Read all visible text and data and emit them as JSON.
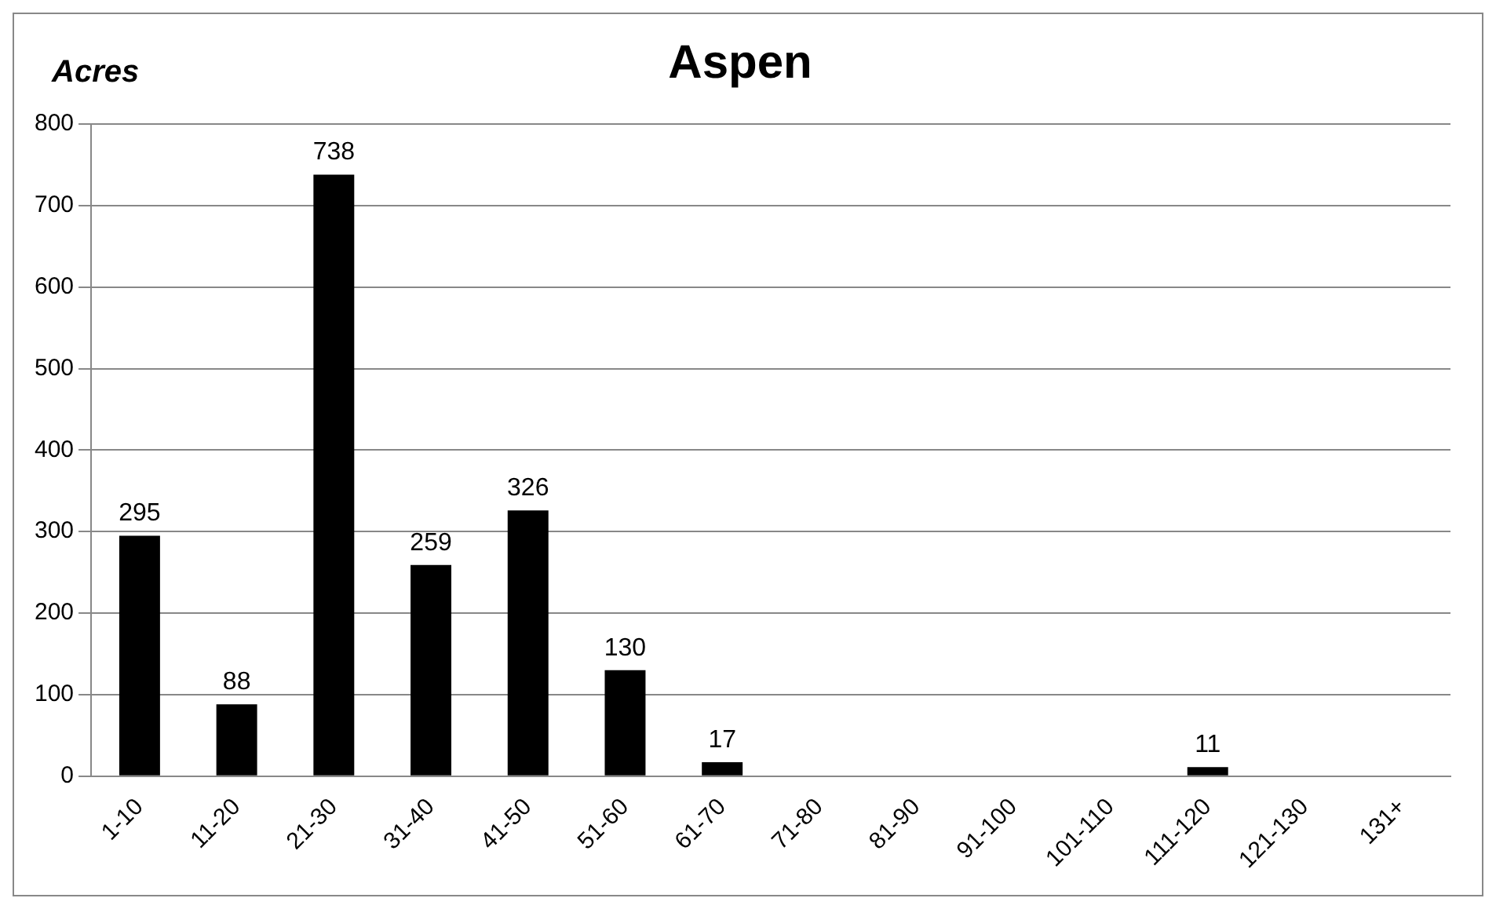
{
  "chart_data": {
    "type": "bar",
    "title": "Aspen",
    "ylabel": "Acres",
    "categories": [
      "1-10",
      "11-20",
      "21-30",
      "31-40",
      "41-50",
      "51-60",
      "61-70",
      "71-80",
      "81-90",
      "91-100",
      "101-110",
      "111-120",
      "121-130",
      "131+"
    ],
    "values": [
      295,
      88,
      738,
      259,
      326,
      130,
      17,
      0,
      0,
      0,
      0,
      11,
      0,
      0
    ],
    "value_labels": [
      "295",
      "88",
      "738",
      "259",
      "326",
      "130",
      "17",
      null,
      null,
      null,
      null,
      "11",
      null,
      null
    ],
    "color": "#000000",
    "ylim": [
      0,
      800
    ],
    "yticks": [
      0,
      100,
      200,
      300,
      400,
      500,
      600,
      700,
      800
    ],
    "grid": "y",
    "legend": false
  }
}
